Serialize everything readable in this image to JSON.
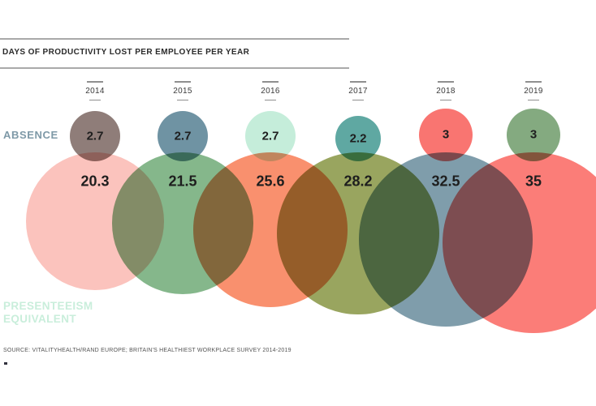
{
  "header": {
    "title": "DAYS OF PRODUCTIVITY LOST PER EMPLOYEE PER YEAR"
  },
  "row_labels": {
    "absence": "ABSENCE",
    "presenteeism_line1": "PRESENTEEISM",
    "presenteeism_line2": "EQUIVALENT"
  },
  "source": "SOURCE: VITALITYHEALTH/RAND EUROPE; BRITAIN'S HEALTHIEST WORKPLACE SURVEY 2014-2019",
  "footnote_mark": ".",
  "colors": {
    "background": "#ffffff",
    "title_text": "#2a2a2a",
    "value_text": "#1e1e1e",
    "absence_label": "#7e99a7",
    "presenteeism_label": "#c9eedb",
    "divider": "#a9a9a9"
  },
  "years": [
    {
      "label": "2014",
      "absence_display": "2.7",
      "presenteeism_display": "20.3",
      "absence_color": "#8f7d79",
      "presenteeism_color": "#fbc3bd"
    },
    {
      "label": "2015",
      "absence_display": "2.7",
      "presenteeism_display": "21.5",
      "absence_color": "#6f93a3",
      "presenteeism_color": "#85b78b"
    },
    {
      "label": "2016",
      "absence_display": "2.7",
      "presenteeism_display": "25.6",
      "absence_color": "#c5edda",
      "presenteeism_color": "#f9906e"
    },
    {
      "label": "2017",
      "absence_display": "2.2",
      "presenteeism_display": "28.2",
      "absence_color": "#5fa8a2",
      "presenteeism_color": "#99a55f"
    },
    {
      "label": "2018",
      "absence_display": "3",
      "presenteeism_display": "32.5",
      "absence_color": "#f97571",
      "presenteeism_color": "#7f9dab"
    },
    {
      "label": "2019",
      "absence_display": "3",
      "presenteeism_display": "35",
      "absence_color": "#84aa80",
      "presenteeism_color": "#fb7d78"
    }
  ],
  "chart_data": {
    "type": "bubble",
    "title": "DAYS OF PRODUCTIVITY LOST PER EMPLOYEE PER YEAR",
    "categories": [
      "2014",
      "2015",
      "2016",
      "2017",
      "2018",
      "2019"
    ],
    "series": [
      {
        "name": "ABSENCE",
        "values": [
          2.7,
          2.7,
          2.7,
          2.2,
          3,
          3
        ]
      },
      {
        "name": "PRESENTEEISM EQUIVALENT",
        "values": [
          20.3,
          21.5,
          25.6,
          28.2,
          32.5,
          35
        ]
      }
    ],
    "unit": "days per employee per year",
    "sizing": "circle area proportional to value",
    "blend": "multiply overlaps",
    "legend_position": "row labels at left",
    "source": "SOURCE: VITALITYHEALTH/RAND EUROPE; BRITAIN'S HEALTHIEST WORKPLACE SURVEY 2014-2019"
  }
}
